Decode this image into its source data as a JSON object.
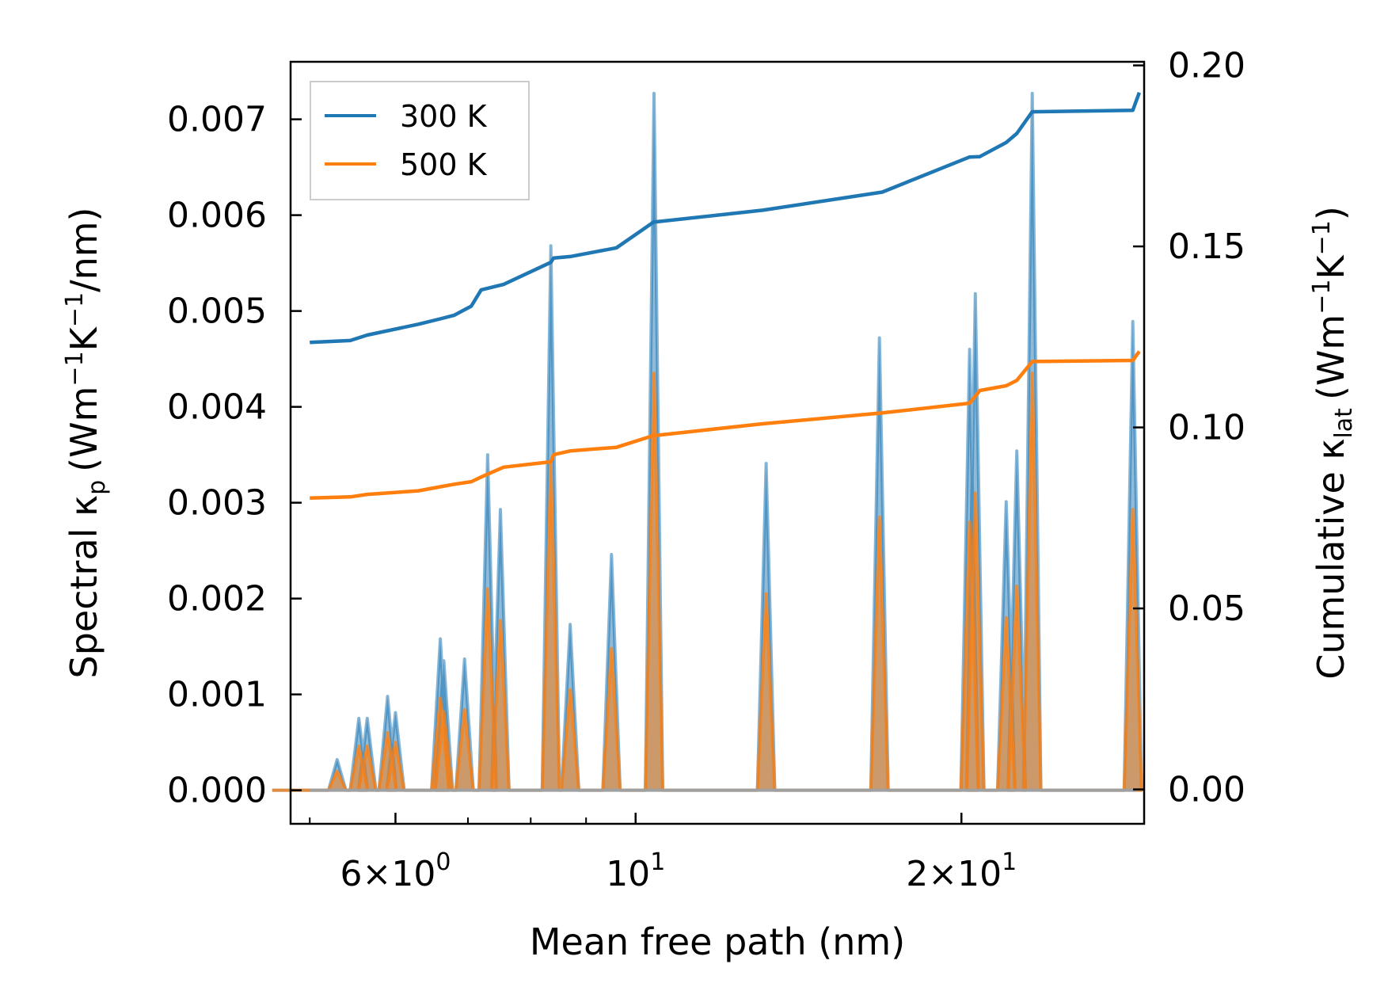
{
  "chart_data": {
    "type": "line",
    "title": "",
    "xlabel": "Mean free path (nm)",
    "x_scale": "log",
    "xlim": [
      4.8,
      29.5
    ],
    "x_ticks": [
      {
        "value": 6,
        "base": "6",
        "mult": "×",
        "exp_base": "10",
        "exp": "0"
      },
      {
        "value": 10,
        "base": "",
        "mult": "",
        "exp_base": "10",
        "exp": "1"
      },
      {
        "value": 20,
        "base": "2",
        "mult": "×",
        "exp_base": "10",
        "exp": "1"
      }
    ],
    "y_left": {
      "label_main": "Spectral κ",
      "label_sub": "p",
      "label_units": "(Wm",
      "label_sup1": "−1",
      "label_mid": "K",
      "label_sup2": "−1",
      "label_end": "/nm)",
      "ylim": [
        -0.00035,
        0.0076
      ],
      "ticks": [
        "0.000",
        "0.001",
        "0.002",
        "0.003",
        "0.004",
        "0.005",
        "0.006",
        "0.007"
      ],
      "tick_values": [
        0,
        0.001,
        0.002,
        0.003,
        0.004,
        0.005,
        0.006,
        0.007
      ]
    },
    "y_right": {
      "label_main": "Cumulative κ",
      "label_sub": "lat",
      "label_units": "(Wm",
      "label_sup1": "−1",
      "label_mid": "K",
      "label_sup2": "−1",
      "label_end": ")",
      "ylim": [
        -0.0095,
        0.201
      ],
      "ticks": [
        "0.00",
        "0.05",
        "0.10",
        "0.15",
        "0.20"
      ],
      "tick_values": [
        0,
        0.05,
        0.1,
        0.15,
        0.2
      ]
    },
    "legend": {
      "position": "top-left",
      "entries": [
        {
          "label": "300 K",
          "color": "#1f77b4"
        },
        {
          "label": "500 K",
          "color": "#ff7f0e"
        }
      ]
    },
    "spectral_series": [
      {
        "name": "300 K spectral",
        "color": "#1f77b4",
        "peaks": [
          {
            "x": 5.3,
            "y": 0.00032
          },
          {
            "x": 5.55,
            "y": 0.00075
          },
          {
            "x": 5.65,
            "y": 0.00075
          },
          {
            "x": 5.9,
            "y": 0.00098
          },
          {
            "x": 6.0,
            "y": 0.00081
          },
          {
            "x": 6.6,
            "y": 0.00158
          },
          {
            "x": 6.65,
            "y": 0.00135
          },
          {
            "x": 6.95,
            "y": 0.00137
          },
          {
            "x": 7.3,
            "y": 0.0035
          },
          {
            "x": 7.5,
            "y": 0.00293
          },
          {
            "x": 8.35,
            "y": 0.00568
          },
          {
            "x": 8.7,
            "y": 0.00173
          },
          {
            "x": 9.5,
            "y": 0.00246
          },
          {
            "x": 10.4,
            "y": 0.00727
          },
          {
            "x": 13.2,
            "y": 0.00341
          },
          {
            "x": 16.8,
            "y": 0.00472
          },
          {
            "x": 20.35,
            "y": 0.0046
          },
          {
            "x": 20.6,
            "y": 0.00518
          },
          {
            "x": 22.0,
            "y": 0.00301
          },
          {
            "x": 22.5,
            "y": 0.00354
          },
          {
            "x": 23.25,
            "y": 0.00727
          },
          {
            "x": 28.8,
            "y": 0.00489
          }
        ]
      },
      {
        "name": "500 K spectral",
        "color": "#ff7f0e",
        "peaks": [
          {
            "x": 5.3,
            "y": 0.0002
          },
          {
            "x": 5.55,
            "y": 0.00046
          },
          {
            "x": 5.65,
            "y": 0.00046
          },
          {
            "x": 5.9,
            "y": 0.0006
          },
          {
            "x": 6.0,
            "y": 0.0005
          },
          {
            "x": 6.6,
            "y": 0.00096
          },
          {
            "x": 6.65,
            "y": 0.00082
          },
          {
            "x": 6.95,
            "y": 0.00084
          },
          {
            "x": 7.3,
            "y": 0.0021
          },
          {
            "x": 7.5,
            "y": 0.00177
          },
          {
            "x": 8.35,
            "y": 0.0034
          },
          {
            "x": 8.7,
            "y": 0.00105
          },
          {
            "x": 9.5,
            "y": 0.00148
          },
          {
            "x": 10.4,
            "y": 0.00435
          },
          {
            "x": 13.2,
            "y": 0.00205
          },
          {
            "x": 16.8,
            "y": 0.00285
          },
          {
            "x": 20.35,
            "y": 0.0028
          },
          {
            "x": 20.6,
            "y": 0.0031
          },
          {
            "x": 22.0,
            "y": 0.0018
          },
          {
            "x": 22.5,
            "y": 0.00213
          },
          {
            "x": 23.25,
            "y": 0.00435
          },
          {
            "x": 28.8,
            "y": 0.00293
          }
        ]
      }
    ],
    "cumulative_series": [
      {
        "name": "300 K",
        "color": "#1f77b4",
        "x": [
          5.0,
          5.45,
          5.65,
          6.3,
          6.6,
          6.8,
          7.05,
          7.2,
          7.55,
          8.35,
          8.4,
          8.7,
          9.6,
          10.4,
          10.45,
          13.1,
          16.9,
          20.35,
          20.8,
          22.0,
          22.5,
          23.25,
          28.8,
          29.2
        ],
        "y": [
          0.1235,
          0.124,
          0.1255,
          0.1285,
          0.13,
          0.131,
          0.1335,
          0.138,
          0.1395,
          0.1456,
          0.1468,
          0.1472,
          0.1496,
          0.1568,
          0.1568,
          0.16,
          0.165,
          0.1747,
          0.1748,
          0.1787,
          0.1812,
          0.1872,
          0.1876,
          0.1925
        ]
      },
      {
        "name": "500 K",
        "color": "#ff7f0e",
        "x": [
          5.0,
          5.45,
          5.65,
          6.3,
          6.6,
          6.8,
          7.05,
          7.2,
          7.55,
          8.35,
          8.4,
          8.7,
          9.6,
          10.4,
          10.45,
          13.1,
          16.9,
          20.35,
          20.8,
          22.0,
          22.5,
          23.25,
          28.8,
          29.2
        ],
        "y": [
          0.0805,
          0.0808,
          0.0815,
          0.0825,
          0.0836,
          0.0843,
          0.085,
          0.0863,
          0.089,
          0.0905,
          0.0925,
          0.0935,
          0.0945,
          0.0978,
          0.0978,
          0.101,
          0.104,
          0.1067,
          0.1102,
          0.1115,
          0.113,
          0.1182,
          0.1185,
          0.121
        ]
      }
    ]
  }
}
